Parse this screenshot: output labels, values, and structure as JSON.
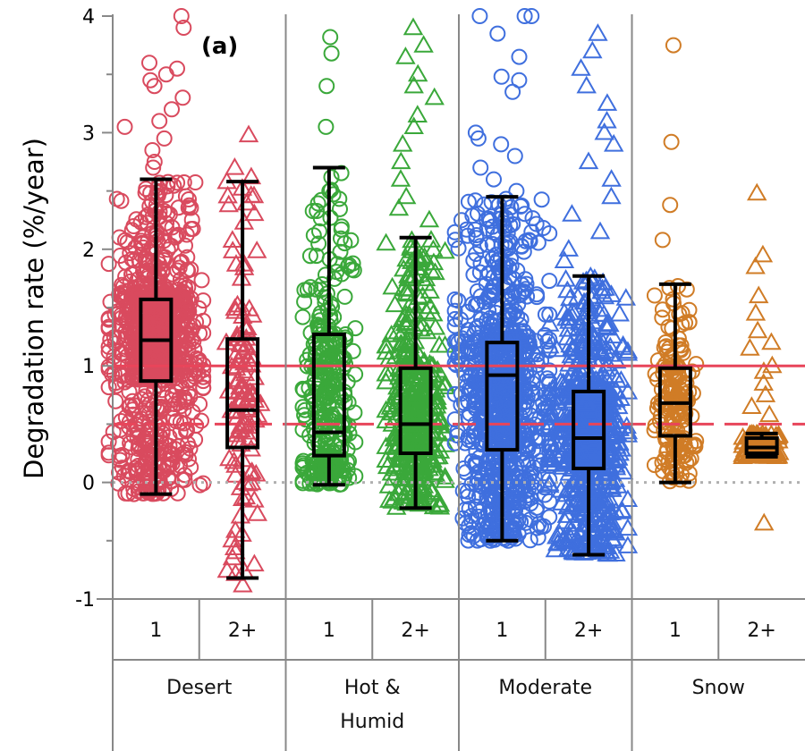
{
  "chart_data": {
    "type": "scatter",
    "subtype": "box-plot-with-jittered-points",
    "panel_label": "(a)",
    "ylabel": "Degradation rate (%/year)",
    "xlabel": "",
    "ylim": [
      -1,
      4
    ],
    "yticks": [
      "-1",
      "0",
      "1",
      "2",
      "3",
      "4"
    ],
    "reference_lines": [
      {
        "y": 1.0,
        "style": "solid",
        "color": "#e8455a"
      },
      {
        "y": 0.5,
        "style": "dashed",
        "color": "#e8455a"
      },
      {
        "y": 0.0,
        "style": "dotted",
        "color": "#b0b0b0"
      }
    ],
    "climate_zones": [
      {
        "label": "Desert",
        "lines": [
          "Desert"
        ],
        "color": "#d94a5e"
      },
      {
        "label": "Hot & Humid",
        "lines": [
          "Hot &",
          "Humid"
        ],
        "color": "#3aa83a"
      },
      {
        "label": "Moderate",
        "lines": [
          "Moderate"
        ],
        "color": "#3f6fde"
      },
      {
        "label": "Snow",
        "lines": [
          "Snow"
        ],
        "color": "#d07c26"
      }
    ],
    "groups": [
      {
        "zone": "Desert",
        "label": "1",
        "marker": "circle",
        "whisker_low": -0.1,
        "q1": 0.87,
        "median": 1.22,
        "q3": 1.57,
        "whisker_high": 2.6,
        "density": 1.0,
        "outliers": [
          4.0,
          3.9,
          3.6,
          3.55,
          3.5,
          3.45,
          3.4,
          3.3,
          3.2,
          3.1,
          3.05,
          2.95,
          2.85,
          2.75,
          2.7,
          -0.1
        ]
      },
      {
        "zone": "Desert",
        "label": "2+",
        "marker": "triangle",
        "whisker_low": -0.82,
        "q1": 0.3,
        "median": 0.62,
        "q3": 1.23,
        "whisker_high": 2.58,
        "density": 0.12,
        "outliers": [
          2.98,
          2.7,
          2.62,
          -0.88
        ]
      },
      {
        "zone": "Hot & Humid",
        "label": "1",
        "marker": "circle",
        "whisker_low": -0.02,
        "q1": 0.23,
        "median": 0.43,
        "q3": 1.27,
        "whisker_high": 2.7,
        "density": 0.35,
        "outliers": [
          3.82,
          3.68,
          3.4,
          3.05
        ]
      },
      {
        "zone": "Hot & Humid",
        "label": "2+",
        "marker": "triangle",
        "whisker_low": -0.22,
        "q1": 0.25,
        "median": 0.5,
        "q3": 0.98,
        "whisker_high": 2.1,
        "density": 0.45,
        "outliers": [
          3.9,
          3.75,
          3.65,
          3.5,
          3.4,
          3.3,
          3.15,
          3.05,
          2.9,
          2.75,
          2.6,
          2.45,
          2.35,
          2.25
        ]
      },
      {
        "zone": "Moderate",
        "label": "1",
        "marker": "circle",
        "whisker_low": -0.5,
        "q1": 0.28,
        "median": 0.92,
        "q3": 1.2,
        "whisker_high": 2.45,
        "density": 1.0,
        "outliers": [
          4.0,
          4.0,
          4.0,
          3.85,
          3.65,
          3.48,
          3.45,
          3.35,
          3.0,
          2.95,
          2.9,
          2.8,
          2.7,
          2.6,
          2.5,
          -0.5
        ]
      },
      {
        "zone": "Moderate",
        "label": "2+",
        "marker": "triangle",
        "whisker_low": -0.62,
        "q1": 0.12,
        "median": 0.38,
        "q3": 0.78,
        "whisker_high": 1.77,
        "density": 0.75,
        "outliers": [
          3.85,
          3.7,
          3.55,
          3.4,
          3.25,
          3.1,
          3.0,
          2.9,
          2.75,
          2.6,
          2.45,
          2.3,
          2.15,
          2.0,
          1.9,
          -0.6
        ]
      },
      {
        "zone": "Snow",
        "label": "1",
        "marker": "circle",
        "whisker_low": 0.0,
        "q1": 0.4,
        "median": 0.68,
        "q3": 0.98,
        "whisker_high": 1.7,
        "density": 0.18,
        "outliers": [
          3.75,
          2.92,
          2.38,
          2.08
        ]
      },
      {
        "zone": "Snow",
        "label": "2+",
        "marker": "triangle",
        "whisker_low": 0.22,
        "q1": 0.25,
        "median": 0.3,
        "q3": 0.38,
        "whisker_high": 0.42,
        "density": 0.12,
        "outliers": [
          2.48,
          1.95,
          1.85,
          1.6,
          1.45,
          1.3,
          1.2,
          1.15,
          1.0,
          0.95,
          0.85,
          0.75,
          0.65,
          0.58,
          -0.35
        ]
      }
    ],
    "grid": false,
    "legend": "none"
  }
}
